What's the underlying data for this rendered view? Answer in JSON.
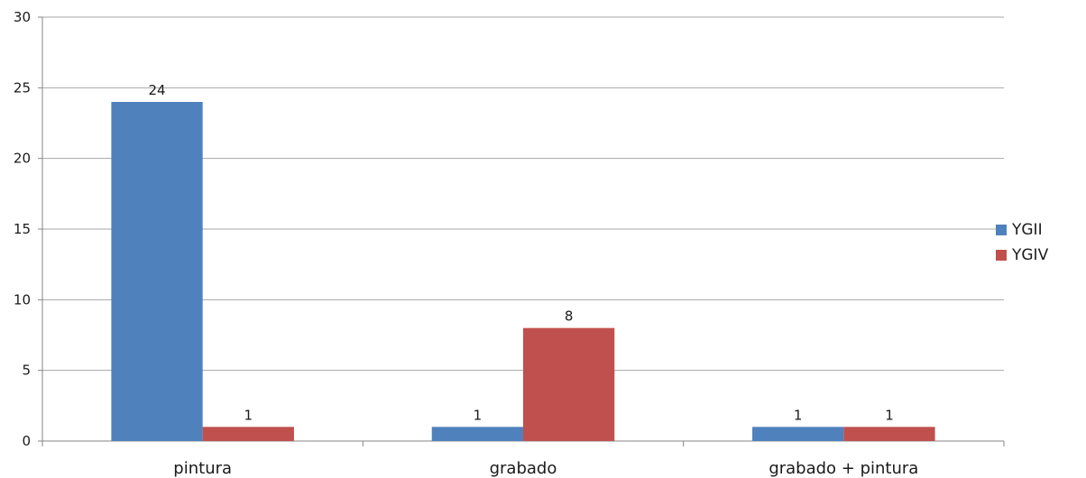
{
  "chart_data": {
    "type": "bar",
    "categories": [
      "pintura",
      "grabado",
      "grabado + pintura"
    ],
    "series": [
      {
        "name": "YGII",
        "values": [
          24,
          1,
          1
        ],
        "color": "#4f81bd"
      },
      {
        "name": "YGIV",
        "values": [
          1,
          8,
          1
        ],
        "color": "#c0504d"
      }
    ],
    "ylim": [
      0,
      30
    ],
    "yticks": [
      0,
      5,
      10,
      15,
      20,
      25,
      30
    ],
    "grid": true,
    "legend": "right",
    "title": "",
    "xlabel": "",
    "ylabel": ""
  }
}
